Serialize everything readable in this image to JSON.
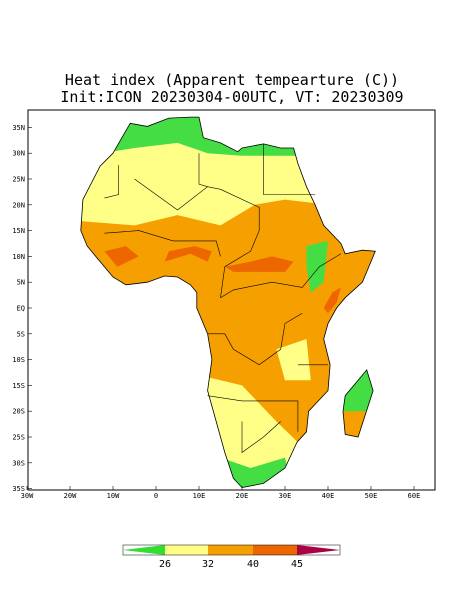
{
  "header": {
    "title": "Heat index (Apparent tempearture (C))",
    "subtitle": "Init:ICON 20230304-00UTC, VT: 20230309"
  },
  "map": {
    "lat_labels": [
      "35N",
      "30N",
      "25N",
      "20N",
      "15N",
      "10N",
      "5N",
      "EQ",
      "5S",
      "10S",
      "15S",
      "20S",
      "25S",
      "30S",
      "35S"
    ],
    "lon_labels": [
      "30W",
      "20W",
      "10W",
      "0",
      "10E",
      "20E",
      "30E",
      "40E",
      "50E",
      "60E"
    ]
  },
  "colorbar": {
    "ticks": [
      26,
      32,
      40,
      45
    ]
  }
}
